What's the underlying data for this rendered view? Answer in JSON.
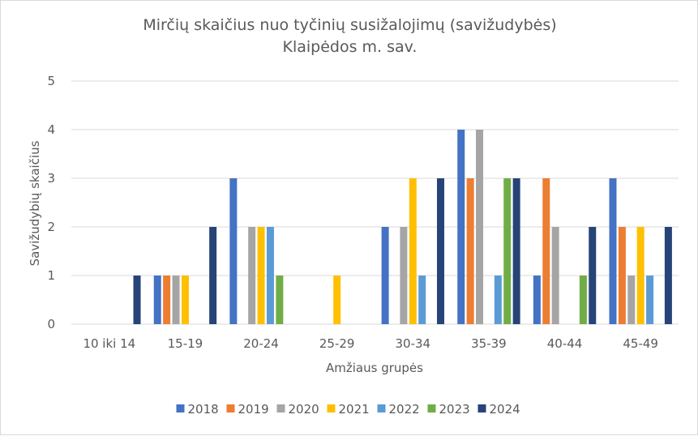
{
  "chart_data": {
    "type": "bar",
    "title_line1": "Mirčių skaičius nuo tyčinių susižalojimų (savižudybės)",
    "title_line2": "Klaipėdos m. sav.",
    "xlabel": "Amžiaus grupės",
    "ylabel": "Savižudybių skaičius",
    "ylim": [
      0,
      5
    ],
    "yticks": [
      0,
      1,
      2,
      3,
      4,
      5
    ],
    "grid": true,
    "legend_position": "bottom",
    "categories": [
      "10 iki 14",
      "15-19",
      "20-24",
      "25-29",
      "30-34",
      "35-39",
      "40-44",
      "45-49"
    ],
    "series": [
      {
        "name": "2018",
        "color": "#4472c4",
        "values": [
          0,
          1,
          3,
          0,
          2,
          4,
          1,
          3
        ]
      },
      {
        "name": "2019",
        "color": "#ed7d31",
        "values": [
          0,
          1,
          0,
          0,
          0,
          3,
          3,
          2
        ]
      },
      {
        "name": "2020",
        "color": "#a5a5a5",
        "values": [
          0,
          1,
          2,
          0,
          2,
          4,
          2,
          1
        ]
      },
      {
        "name": "2021",
        "color": "#ffc000",
        "values": [
          0,
          1,
          2,
          1,
          3,
          0,
          0,
          2
        ]
      },
      {
        "name": "2022",
        "color": "#5b9bd5",
        "values": [
          0,
          0,
          2,
          0,
          1,
          1,
          0,
          1
        ]
      },
      {
        "name": "2023",
        "color": "#70ad47",
        "values": [
          0,
          0,
          1,
          0,
          0,
          3,
          1,
          0
        ]
      },
      {
        "name": "2024",
        "color": "#264478",
        "values": [
          1,
          2,
          0,
          0,
          3,
          3,
          2,
          2
        ]
      }
    ]
  }
}
